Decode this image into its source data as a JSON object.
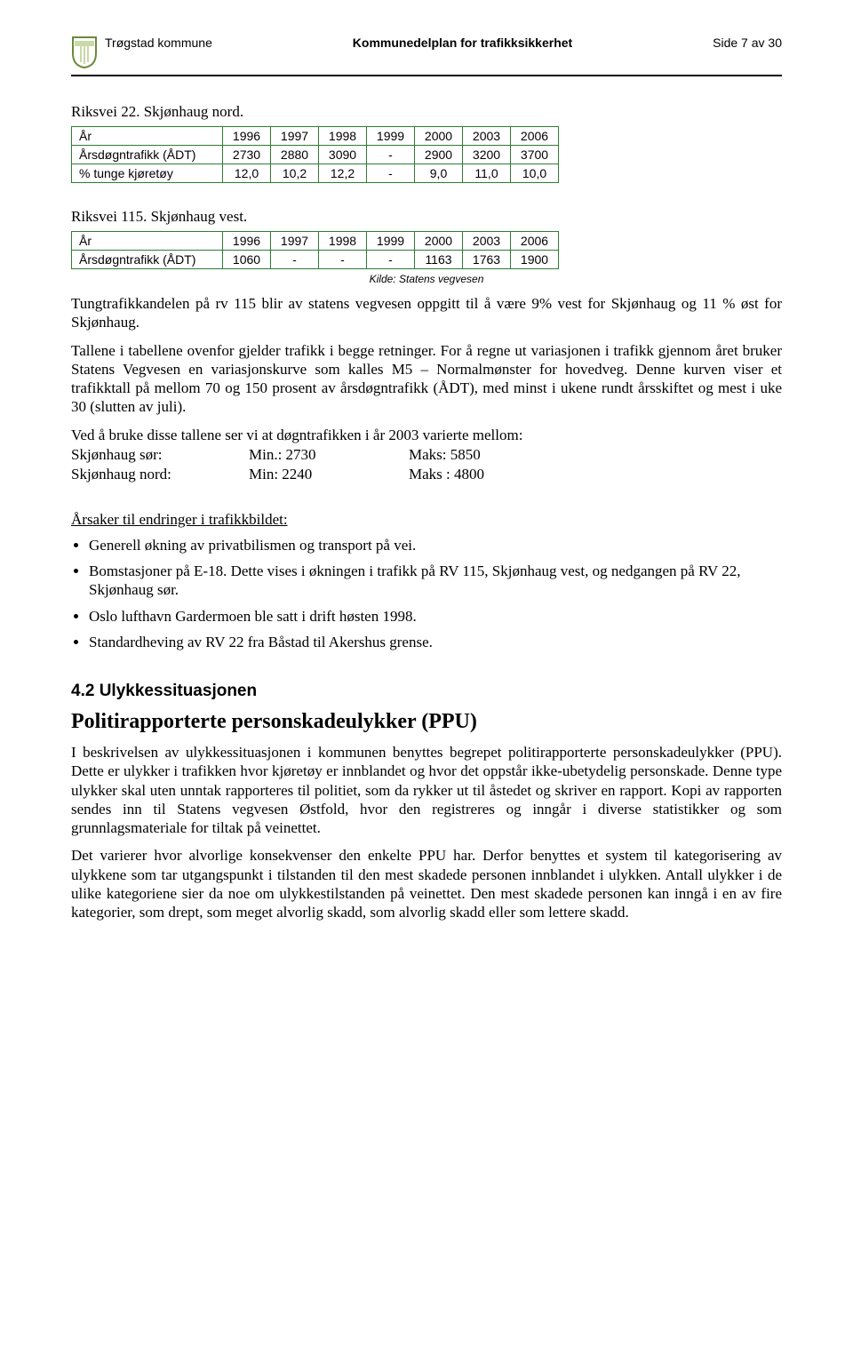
{
  "header": {
    "left": "Trøgstad kommune",
    "center": "Kommunedelplan for trafikksikkerhet",
    "right": "Side 7 av 30",
    "shield_colors": {
      "outline": "#6a8a3a",
      "fill": "#ffffff",
      "band": "#c9d9a8"
    }
  },
  "section1": {
    "label": "Riksvei 22. Skjønhaug nord.",
    "table": {
      "type": "table",
      "border_color": "#2e7d32",
      "columns": [
        "År",
        "1996",
        "1997",
        "1998",
        "1999",
        "2000",
        "2003",
        "2006"
      ],
      "rows": [
        [
          "Årsdøgntrafikk (ÅDT)",
          "2730",
          "2880",
          "3090",
          "-",
          "2900",
          "3200",
          "3700"
        ],
        [
          "% tunge kjøretøy",
          "12,0",
          "10,2",
          "12,2",
          "-",
          "9,0",
          "11,0",
          "10,0"
        ]
      ]
    }
  },
  "section2": {
    "label": "Riksvei 115. Skjønhaug vest.",
    "table": {
      "type": "table",
      "border_color": "#2e7d32",
      "columns": [
        "År",
        "1996",
        "1997",
        "1998",
        "1999",
        "2000",
        "2003",
        "2006"
      ],
      "rows": [
        [
          "Årsdøgntrafikk (ÅDT)",
          "1060",
          "-",
          "-",
          "-",
          "1163",
          "1763",
          "1900"
        ]
      ]
    },
    "kilde": "Kilde: Statens vegvesen"
  },
  "para1": "Tungtrafikkandelen på rv 115 blir av statens vegvesen oppgitt til å være 9% vest for Skjønhaug og 11 % øst for Skjønhaug.",
  "para2": "Tallene i tabellene ovenfor gjelder trafikk i begge retninger. For å regne ut variasjonen i trafikk gjennom året bruker Statens Vegvesen en variasjonskurve som kalles M5 – Normalmønster for hovedveg. Denne kurven viser et trafikktall på mellom 70 og 150 prosent av årsdøgntrafikk (ÅDT), med minst i ukene rundt årsskiftet og mest i uke 30 (slutten av juli).",
  "stats": {
    "intro": "Ved å bruke disse tallene ser vi at døgntrafikken i år 2003 varierte mellom:",
    "rows": [
      {
        "label": "Skjønhaug sør:",
        "min": "Min.: 2730",
        "maks": "Maks:  5850"
      },
      {
        "label": "Skjønhaug nord:",
        "min": "Min: 2240",
        "maks": "Maks : 4800"
      }
    ]
  },
  "causes": {
    "title": "Årsaker til endringer i trafikkbildet:",
    "items": [
      "Generell økning av privatbilismen og transport på vei.",
      "Bomstasjoner på E-18. Dette vises i økningen i trafikk på RV 115, Skjønhaug vest, og nedgangen på RV 22, Skjønhaug sør.",
      "Oslo lufthavn Gardermoen ble satt i drift høsten 1998.",
      "Standardheving av RV 22 fra Båstad til Akershus grense."
    ]
  },
  "subhead": "4.2 Ulykkessituasjonen",
  "bighead": "Politirapporterte personskadeulykker (PPU)",
  "para3": "I beskrivelsen av ulykkessituasjonen i kommunen benyttes begrepet politirapporterte personskadeulykker (PPU). Dette er ulykker i trafikken hvor kjøretøy er innblandet og hvor det oppstår ikke-ubetydelig personskade. Denne type ulykker skal uten unntak rapporteres til politiet, som da rykker ut til åstedet og skriver en rapport. Kopi av rapporten sendes inn til Statens vegvesen Østfold, hvor den registreres og inngår i diverse statistikker og som grunnlagsmateriale for tiltak på veinettet.",
  "para4": "Det varierer hvor alvorlige konsekvenser den enkelte PPU har. Derfor benyttes et system til kategorisering av ulykkene som tar utgangspunkt i tilstanden til den mest skadede personen innblandet i ulykken. Antall ulykker i de ulike kategoriene sier da noe om ulykkestilstanden på veinettet. Den mest skadede personen kan inngå i en av fire kategorier, som drept, som meget alvorlig skadd, som alvorlig skadd eller som lettere skadd."
}
